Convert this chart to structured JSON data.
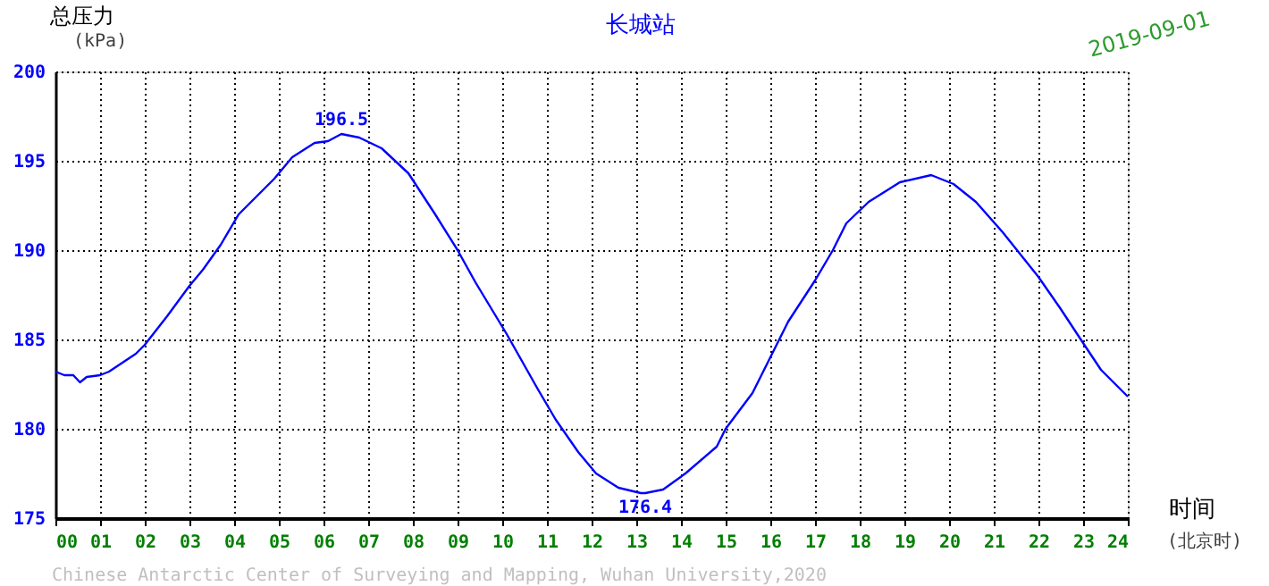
{
  "chart_data": {
    "type": "line",
    "title": "长城站",
    "subtitle": "2019-09-01",
    "xlabel": "时间",
    "ylabel": "总压力",
    "annotations": [
      "(kPa)",
      "(北京时)",
      "Chinese Antarctic Center of Surveying and Mapping, Wuhan University,2020",
      {
        "text": "196.5",
        "x": 6.4,
        "y": 196.5
      },
      {
        "text": "176.4",
        "x": 13.2,
        "y": 176.4
      }
    ],
    "series": [
      {
        "color": "#0000ff",
        "x": [
          0,
          0.2,
          0.4,
          0.55,
          0.7,
          1.0,
          1.2,
          1.5,
          1.8,
          2.0,
          2.5,
          3.0,
          3.3,
          3.7,
          4.1,
          4.5,
          4.9,
          5.3,
          5.8,
          6.1,
          6.4,
          6.8,
          7.3,
          7.9,
          8.5,
          9.0,
          9.4,
          10.1,
          10.8,
          11.2,
          11.7,
          12.1,
          12.6,
          13.1,
          13.2,
          13.6,
          14.1,
          14.8,
          15.0,
          15.6,
          16.0,
          16.4,
          17.0,
          17.4,
          17.7,
          18.2,
          18.9,
          19.6,
          20.1,
          20.6,
          21.2,
          22.0,
          22.5,
          23.0,
          23.4,
          24.0
        ],
        "values": [
          183.2,
          183.0,
          183.0,
          182.6,
          182.9,
          183.0,
          183.2,
          183.7,
          184.2,
          184.7,
          186.3,
          188.0,
          188.9,
          190.3,
          192.0,
          193.0,
          194.0,
          195.2,
          196.0,
          196.1,
          196.5,
          196.3,
          195.7,
          194.3,
          192.0,
          190.0,
          188.2,
          185.3,
          182.2,
          180.5,
          178.7,
          177.5,
          176.7,
          176.4,
          176.4,
          176.6,
          177.5,
          179.0,
          180.0,
          182.0,
          184.0,
          186.0,
          188.3,
          190.0,
          191.5,
          192.7,
          193.8,
          194.2,
          193.7,
          192.7,
          191.0,
          188.5,
          186.7,
          184.8,
          183.3,
          181.8
        ]
      }
    ],
    "xlim": [
      0,
      24
    ],
    "ylim": [
      175,
      200
    ],
    "xticks": [
      {
        "value": 0,
        "label": "00"
      },
      {
        "value": 1,
        "label": "01"
      },
      {
        "value": 2,
        "label": "02"
      },
      {
        "value": 3,
        "label": "03"
      },
      {
        "value": 4,
        "label": "04"
      },
      {
        "value": 5,
        "label": "05"
      },
      {
        "value": 6,
        "label": "06"
      },
      {
        "value": 7,
        "label": "07"
      },
      {
        "value": 8,
        "label": "08"
      },
      {
        "value": 9,
        "label": "09"
      },
      10,
      11,
      12,
      13,
      14,
      15,
      16,
      17,
      18,
      19,
      20,
      21,
      22,
      23,
      24
    ],
    "yticks": [
      175,
      180,
      185,
      190,
      195,
      200
    ],
    "grid": true,
    "legend": false,
    "marker": "none",
    "line_style": "solid"
  }
}
